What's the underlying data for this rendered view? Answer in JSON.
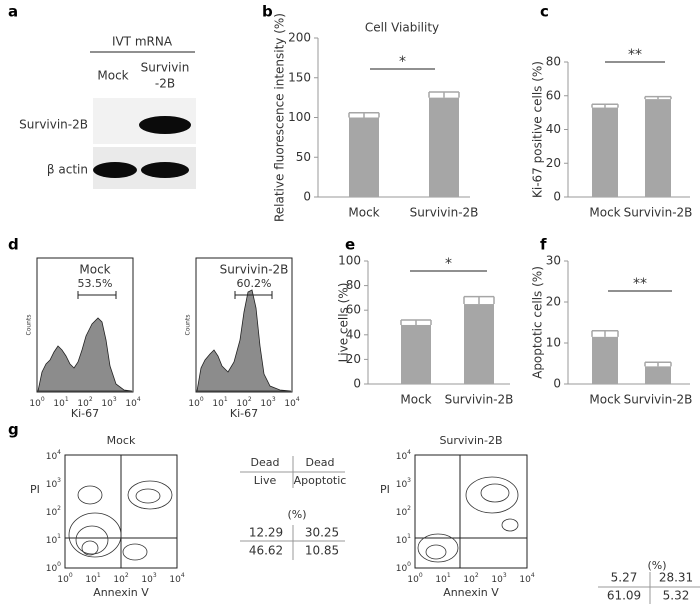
{
  "panel_labels": [
    "a",
    "b",
    "c",
    "d",
    "e",
    "f",
    "g"
  ],
  "blot": {
    "header": "IVT mRNA",
    "lanes": [
      "Mock",
      [
        "Survivin",
        "-2B"
      ]
    ],
    "rows": [
      "Survivin-2B",
      "β actin"
    ]
  },
  "chart_data": [
    {
      "type": "bar",
      "title": "Cell Viability",
      "y_label": "Relative fluorescence intensity (%)",
      "categories": [
        "Mock",
        "Survivin-2B"
      ],
      "values": [
        100,
        125
      ],
      "errors": [
        6,
        7
      ],
      "color": "#a6a6a6",
      "ylim": [
        0,
        200
      ],
      "yticks": [
        0,
        50,
        100,
        150,
        200
      ],
      "annotation": "*"
    },
    {
      "type": "bar",
      "y_label": "Ki-67 positive cells (%)",
      "categories": [
        "Mock",
        "Survivin-2B"
      ],
      "values": [
        53,
        58
      ],
      "errors": [
        2,
        1.5
      ],
      "color": "#a6a6a6",
      "ylim": [
        0,
        80
      ],
      "yticks": [
        0,
        20,
        40,
        60,
        80
      ],
      "annotation": "**"
    },
    {
      "type": "bar",
      "y_label": "Live cells (%)",
      "categories": [
        "Mock",
        "Survivin-2B"
      ],
      "values": [
        48,
        65
      ],
      "errors": [
        4,
        6
      ],
      "color": "#a6a6a6",
      "ylim": [
        0,
        100
      ],
      "yticks": [
        0,
        20,
        40,
        60,
        80,
        100
      ],
      "annotation": "*"
    },
    {
      "type": "bar",
      "y_label": "Apoptotic cells (%)",
      "categories": [
        "Mock",
        "Survivin-2B"
      ],
      "values": [
        11.5,
        4.3
      ],
      "errors": [
        1.5,
        1
      ],
      "color": "#a6a6a6",
      "ylim": [
        0,
        30
      ],
      "yticks": [
        0,
        10,
        20,
        30
      ],
      "annotation": "**"
    }
  ],
  "histograms": {
    "x_label": "Ki-67",
    "y_label": "Counts",
    "xtick_labels": [
      [
        "10",
        "0"
      ],
      [
        "10",
        "1"
      ],
      [
        "10",
        "2"
      ],
      [
        "10",
        "3"
      ],
      [
        "10",
        "4"
      ]
    ],
    "panels": [
      {
        "name": "Mock",
        "gate": "53.5%"
      },
      {
        "name": "Survivin-2B",
        "gate": "60.2%"
      }
    ]
  },
  "flow": {
    "x_label": "Annexin V",
    "y_label": "PI",
    "tick_labels": [
      [
        "10",
        "0"
      ],
      [
        "10",
        "1"
      ],
      [
        "10",
        "2"
      ],
      [
        "10",
        "3"
      ],
      [
        "10",
        "4"
      ]
    ],
    "table_header": [
      [
        "Dead",
        "Dead"
      ],
      [
        "Live",
        "Apoptotic"
      ]
    ],
    "unit": "(%)",
    "plots": [
      {
        "name": "Mock",
        "quadrants": [
          [
            12.29,
            30.25
          ],
          [
            46.62,
            10.85
          ]
        ]
      },
      {
        "name": "Survivin-2B",
        "quadrants": [
          [
            5.27,
            28.31
          ],
          [
            61.09,
            5.32
          ]
        ]
      }
    ]
  }
}
